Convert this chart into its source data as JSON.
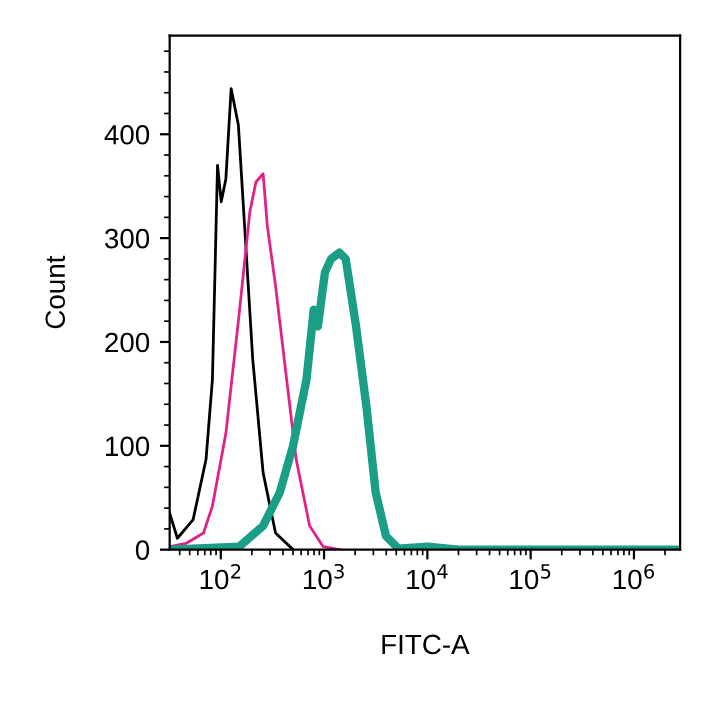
{
  "chart_data": {
    "type": "line",
    "xlabel": "FITC-A",
    "ylabel": "Count",
    "log": "x",
    "xlim": [
      32,
      2800000
    ],
    "xticks": [
      {
        "value": 100,
        "label": "10$^{2}$"
      },
      {
        "value": 1000,
        "label": "10$^{3}$"
      },
      {
        "value": 10000,
        "label": "10$^{4}$"
      },
      {
        "value": 100000,
        "label": "10$^{5}$"
      },
      {
        "value": 1000000,
        "label": "10$^{6}$"
      }
    ],
    "ylim": [
      0,
      495
    ],
    "yticks": [
      0,
      100,
      200,
      300,
      400
    ],
    "grid": false,
    "legend": false,
    "marker": "none",
    "line_style": "solid",
    "series": [
      {
        "color": "#000000",
        "x": [
          32,
          38,
          54,
          72,
          83,
          93,
          101,
          112,
          126,
          148,
          170,
          204,
          257,
          339,
          501
        ],
        "values": [
          35,
          11,
          29,
          87,
          164,
          370,
          335,
          357,
          444,
          409,
          312,
          183,
          74,
          16,
          0
        ]
      },
      {
        "color": "#e0218a",
        "x": [
          32,
          46,
          68,
          83,
          112,
          151,
          191,
          219,
          257,
          282,
          339,
          427,
          537,
          724,
          977,
          1410
        ],
        "values": [
          3,
          6,
          16,
          42,
          112,
          228,
          325,
          354,
          362,
          312,
          254,
          170,
          87,
          23,
          3,
          0
        ]
      },
      {
        "color": "#1a9e86",
        "x": [
          32,
          151,
          257,
          372,
          501,
          676,
          794,
          871,
          1020,
          1170,
          1410,
          1620,
          2040,
          2570,
          3160,
          3980,
          5250,
          10000,
          20000,
          2800000
        ],
        "values": [
          0,
          3,
          23,
          55,
          100,
          164,
          231,
          215,
          267,
          280,
          286,
          280,
          215,
          138,
          55,
          13,
          1,
          3,
          0,
          0
        ]
      }
    ]
  }
}
